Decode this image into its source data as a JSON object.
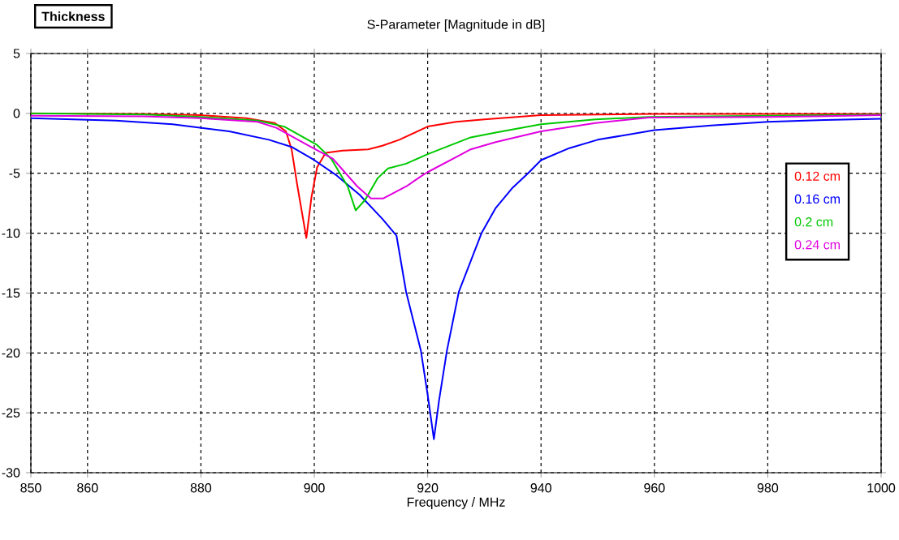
{
  "chart_data": {
    "type": "line",
    "title": "S-Parameter [Magnitude in dB]",
    "xlabel": "Frequency / MHz",
    "legend_title": "Thickness",
    "xlim": [
      850,
      1000
    ],
    "ylim": [
      -30,
      5
    ],
    "xticks": [
      850,
      860,
      880,
      900,
      920,
      940,
      960,
      980,
      1000
    ],
    "yticks": [
      5,
      0,
      -5,
      -10,
      -15,
      -20,
      -25,
      -30
    ],
    "grid": true,
    "legend": "right",
    "marker": "none",
    "line_style": "solid",
    "series": [
      {
        "name": "0.12 cm",
        "color": "#ff0000",
        "x": [
          850,
          870,
          880,
          888,
          893,
          895,
          896,
          897,
          898.6,
          899.5,
          900.5,
          902,
          905,
          909.5,
          912,
          915,
          920,
          925,
          930,
          940,
          960,
          1000
        ],
        "values": [
          0,
          -0.05,
          -0.15,
          -0.4,
          -0.8,
          -1.5,
          -3,
          -6,
          -10.4,
          -7,
          -4.5,
          -3.3,
          -3.1,
          -3.0,
          -2.7,
          -2.2,
          -1.1,
          -0.7,
          -0.5,
          -0.15,
          -0.05,
          -0.05
        ]
      },
      {
        "name": "0.16 cm",
        "color": "#0000ff",
        "x": [
          850,
          865,
          875,
          885,
          892,
          896,
          900,
          904,
          908,
          912,
          914.5,
          916.2,
          918.8,
          920,
          921.1,
          922,
          923.4,
          925.5,
          929.5,
          932,
          935,
          937.7,
          940,
          945,
          950,
          960,
          970,
          980,
          990,
          1000
        ],
        "values": [
          -0.4,
          -0.6,
          -0.9,
          -1.5,
          -2.2,
          -2.8,
          -3.9,
          -5.2,
          -6.8,
          -8.8,
          -10.2,
          -14.9,
          -19.8,
          -23.5,
          -27.2,
          -24,
          -19.8,
          -14.9,
          -10,
          -7.9,
          -6.2,
          -5.0,
          -3.9,
          -2.9,
          -2.2,
          -1.4,
          -1.0,
          -0.7,
          -0.55,
          -0.45
        ]
      },
      {
        "name": "0.2 cm",
        "color": "#00c800",
        "x": [
          850,
          870,
          880,
          890,
          894.7,
          900.4,
          903,
          905.9,
          907.3,
          909,
          911.2,
          913,
          916.2,
          920,
          927.6,
          932,
          940,
          949.6,
          959,
          980,
          1000
        ],
        "values": [
          0,
          -0.1,
          -0.3,
          -0.6,
          -1.1,
          -2.6,
          -3.8,
          -6.1,
          -8.1,
          -7.2,
          -5.4,
          -4.6,
          -4.2,
          -3.4,
          -2.0,
          -1.6,
          -0.9,
          -0.5,
          -0.3,
          -0.2,
          -0.1
        ]
      },
      {
        "name": "0.24 cm",
        "color": "#e000e0",
        "x": [
          850,
          870,
          880,
          890,
          893.3,
          899,
          903.3,
          907.6,
          910,
          912.2,
          916.2,
          919,
          920,
          925.6,
          927.6,
          932,
          940,
          949.6,
          959,
          980,
          1000
        ],
        "values": [
          -0.2,
          -0.25,
          -0.4,
          -0.7,
          -1.2,
          -2.7,
          -3.8,
          -6.1,
          -7.1,
          -7.1,
          -6.1,
          -5.2,
          -4.9,
          -3.5,
          -3.0,
          -2.4,
          -1.5,
          -0.8,
          -0.35,
          -0.3,
          -0.15
        ]
      }
    ]
  }
}
